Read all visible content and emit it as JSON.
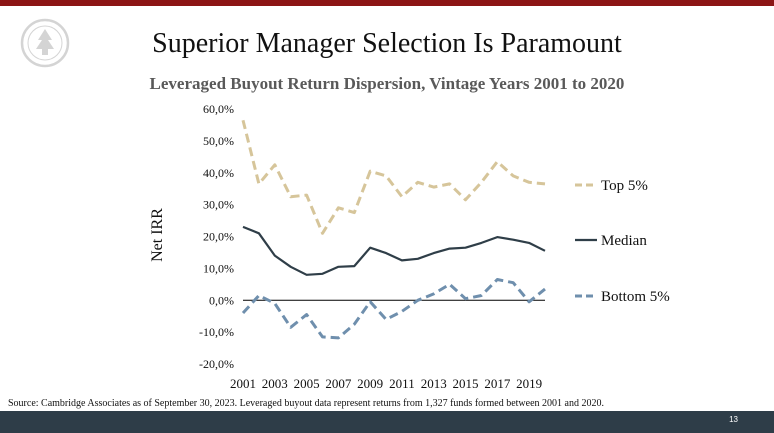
{
  "slide": {
    "title": "Superior Manager Selection Is Paramount",
    "source": "Source: Cambridge Associates as of September 30, 2023.  Leveraged buyout data represent returns from 1,327 funds formed between 2001 and 2020.",
    "page_number": "13"
  },
  "colors": {
    "top_bar": "#8c1515",
    "bottom_bar": "#2e3d48",
    "top5": "#d6c59a",
    "median": "#2f3e48",
    "bottom5": "#6f8fad"
  },
  "chart_data": {
    "type": "line",
    "title": "Leveraged Buyout Return Dispersion, Vintage Years 2001 to 2020",
    "ylabel": "Net IRR",
    "xlabel": "",
    "ylim": [
      -20,
      60
    ],
    "y_ticks": [
      "-20,0%",
      "-10,0%",
      "0,0%",
      "10,0%",
      "20,0%",
      "30,0%",
      "40,0%",
      "50,0%",
      "60,0%"
    ],
    "x_tick_labels": [
      "2001",
      "2003",
      "2005",
      "2007",
      "2009",
      "2011",
      "2013",
      "2015",
      "2017",
      "2019"
    ],
    "x": [
      2001,
      2002,
      2003,
      2004,
      2005,
      2006,
      2007,
      2008,
      2009,
      2010,
      2011,
      2012,
      2013,
      2014,
      2015,
      2016,
      2017,
      2018,
      2019,
      2020
    ],
    "legend_position": "right",
    "series": [
      {
        "name": "Top 5%",
        "style": "dashed",
        "values": [
          56.5,
          36.5,
          42.5,
          32.5,
          33.0,
          21.0,
          29.0,
          27.5,
          40.5,
          39.0,
          32.5,
          37.0,
          35.5,
          36.5,
          31.5,
          37.0,
          43.5,
          39.0,
          37.0,
          36.5
        ]
      },
      {
        "name": "Median",
        "style": "solid",
        "values": [
          23.0,
          21.0,
          14.0,
          10.5,
          8.0,
          8.3,
          10.5,
          10.7,
          16.5,
          14.8,
          12.5,
          13.0,
          14.8,
          16.2,
          16.5,
          18.0,
          19.8,
          19.0,
          18.0,
          15.5
        ]
      },
      {
        "name": "Bottom 5%",
        "style": "dashed",
        "values": [
          -4.0,
          1.5,
          -1.0,
          -8.5,
          -4.5,
          -11.5,
          -11.8,
          -7.5,
          -0.5,
          -6.0,
          -3.5,
          0.0,
          2.0,
          5.0,
          0.5,
          1.5,
          6.5,
          5.5,
          -0.5,
          3.5
        ]
      }
    ]
  }
}
